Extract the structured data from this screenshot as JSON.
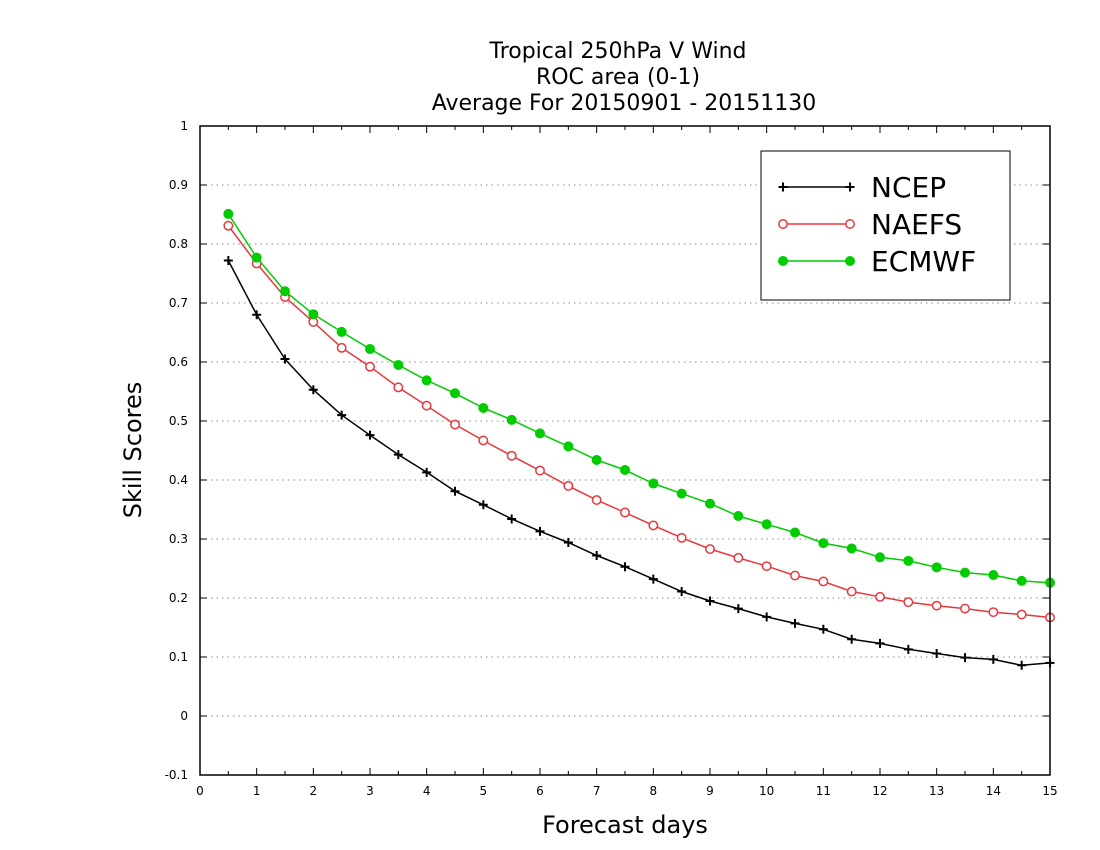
{
  "chart_data": {
    "type": "line",
    "title_lines": [
      "Tropical 250hPa V Wind",
      "ROC area (0-1)",
      "Average For 20150901 - 20151130"
    ],
    "xlabel": "Forecast days",
    "ylabel": "Skill Scores",
    "xlim": [
      0,
      15
    ],
    "ylim": [
      -0.1,
      1
    ],
    "x_ticks": [
      "0",
      "1",
      "2",
      "3",
      "4",
      "5",
      "6",
      "7",
      "8",
      "9",
      "10",
      "11",
      "12",
      "13",
      "14",
      "15"
    ],
    "y_ticks": [
      "-0.1",
      "0",
      "0.1",
      "0.2",
      "0.3",
      "0.4",
      "0.5",
      "0.6",
      "0.7",
      "0.8",
      "0.9",
      "1"
    ],
    "grid": "horizontal dotted",
    "legend_position": "top-right",
    "x": [
      0.5,
      1,
      1.5,
      2,
      2.5,
      3,
      3.5,
      4,
      4.5,
      5,
      5.5,
      6,
      6.5,
      7,
      7.5,
      8,
      8.5,
      9,
      9.5,
      10,
      10.5,
      11,
      11.5,
      12,
      12.5,
      13,
      13.5,
      14,
      14.5,
      15
    ],
    "series": [
      {
        "name": "NCEP",
        "color": "#000000",
        "marker": "plus",
        "values": [
          0.772,
          0.68,
          0.605,
          0.553,
          0.51,
          0.476,
          0.443,
          0.413,
          0.381,
          0.358,
          0.334,
          0.313,
          0.294,
          0.272,
          0.253,
          0.232,
          0.211,
          0.195,
          0.182,
          0.168,
          0.157,
          0.147,
          0.13,
          0.123,
          0.113,
          0.106,
          0.099,
          0.096,
          0.086,
          0.09
        ]
      },
      {
        "name": "NAEFS",
        "color": "#e8383d",
        "marker": "open-circle",
        "values": [
          0.831,
          0.767,
          0.71,
          0.668,
          0.624,
          0.592,
          0.557,
          0.526,
          0.494,
          0.467,
          0.441,
          0.416,
          0.39,
          0.366,
          0.345,
          0.323,
          0.302,
          0.283,
          0.268,
          0.254,
          0.238,
          0.228,
          0.211,
          0.202,
          0.193,
          0.187,
          0.182,
          0.176,
          0.172,
          0.167
        ]
      },
      {
        "name": "ECMWF",
        "color": "#00cc00",
        "marker": "filled-circle",
        "values": [
          0.851,
          0.777,
          0.72,
          0.681,
          0.651,
          0.622,
          0.595,
          0.569,
          0.547,
          0.522,
          0.502,
          0.479,
          0.457,
          0.434,
          0.417,
          0.394,
          0.377,
          0.36,
          0.339,
          0.325,
          0.311,
          0.293,
          0.284,
          0.269,
          0.263,
          0.252,
          0.243,
          0.239,
          0.229,
          0.226
        ]
      }
    ]
  }
}
